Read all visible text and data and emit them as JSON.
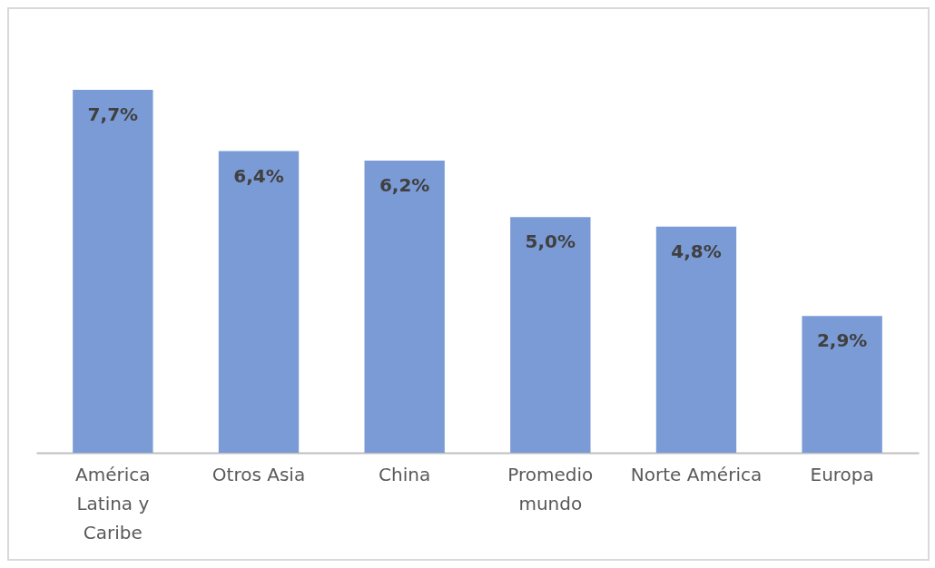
{
  "chart_data": {
    "type": "bar",
    "categories": [
      "América Latina y Caribe",
      "Otros Asia",
      "China",
      "Promedio mundo",
      "Norte América",
      "Europa"
    ],
    "values": [
      7.7,
      6.4,
      6.2,
      5.0,
      4.8,
      2.9
    ],
    "value_labels": [
      "7,7%",
      "6,4%",
      "6,2%",
      "5,0%",
      "4,8%",
      "2,9%"
    ],
    "color": "#7b9bd6"
  }
}
